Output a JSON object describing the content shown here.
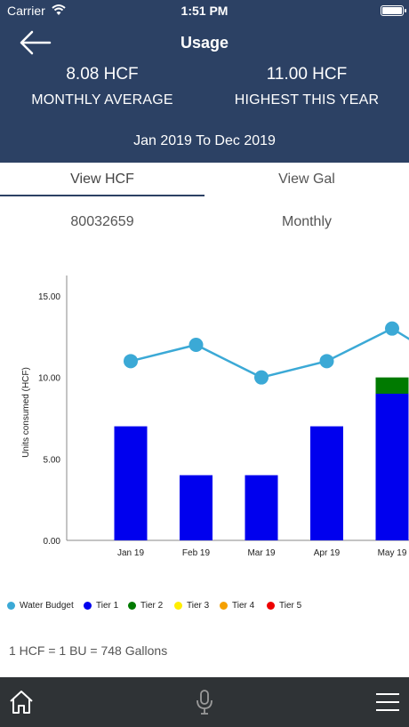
{
  "status_bar": {
    "carrier": "Carrier",
    "time": "1:51 PM"
  },
  "header": {
    "title": "Usage",
    "monthly_average": {
      "value": "8.08 HCF",
      "label": "MONTHLY AVERAGE"
    },
    "highest": {
      "value": "11.00 HCF",
      "label": "HIGHEST THIS YEAR"
    },
    "date_range": "Jan 2019 To Dec 2019"
  },
  "tabs": [
    {
      "label": "View HCF",
      "active": true
    },
    {
      "label": "View Gal",
      "active": false
    }
  ],
  "account": {
    "number": "80032659",
    "period": "Monthly"
  },
  "chart_data": {
    "type": "bar",
    "ylabel": "Units consumed (HCF)",
    "xlabel": "",
    "ylim": [
      0,
      15
    ],
    "yticks": [
      "0.00",
      "5.00",
      "10.00",
      "15.00"
    ],
    "categories": [
      "Jan 19",
      "Feb 19",
      "Mar 19",
      "Apr 19",
      "May 19"
    ],
    "series": [
      {
        "name": "Tier 1",
        "kind": "bar",
        "color": "#0000ee",
        "values": [
          7,
          4,
          4,
          7,
          9
        ]
      },
      {
        "name": "Tier 2",
        "kind": "bar",
        "color": "#007a00",
        "values": [
          0,
          0,
          0,
          0,
          1
        ]
      },
      {
        "name": "Water Budget",
        "kind": "line",
        "color": "#3ba9d6",
        "values": [
          11,
          12,
          10,
          11,
          13
        ]
      }
    ],
    "legend_position": "bottom",
    "grid": false
  },
  "legend": [
    {
      "label": "Water Budget",
      "color": "#3ba9d6"
    },
    {
      "label": "Tier 1",
      "color": "#0000ee"
    },
    {
      "label": "Tier 2",
      "color": "#007a00"
    },
    {
      "label": "Tier 3",
      "color": "#ffee00"
    },
    {
      "label": "Tier 4",
      "color": "#f5a000"
    },
    {
      "label": "Tier 5",
      "color": "#ee0000"
    }
  ],
  "conversion_note": "1 HCF = 1 BU = 748 Gallons",
  "bottom_nav": {
    "home_icon": "home-icon",
    "mic_icon": "microphone-icon",
    "menu_icon": "hamburger-menu-icon"
  }
}
